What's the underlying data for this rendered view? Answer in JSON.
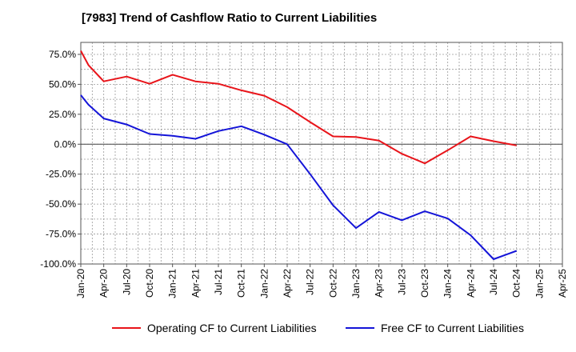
{
  "chart_data": {
    "type": "line",
    "title": "[7983]  Trend of Cashflow Ratio to Current Liabilities",
    "xlabel": "",
    "ylabel": "",
    "x_tick_labels": [
      "Jan-20",
      "Apr-20",
      "Jul-20",
      "Oct-20",
      "Jan-21",
      "Apr-21",
      "Jul-21",
      "Oct-21",
      "Jan-22",
      "Apr-22",
      "Jul-22",
      "Oct-22",
      "Jan-23",
      "Apr-23",
      "Jul-23",
      "Oct-23",
      "Jan-24",
      "Apr-24",
      "Jul-24",
      "Oct-24",
      "Jan-25",
      "Apr-25"
    ],
    "y_tick_values": [
      75,
      50,
      25,
      0,
      -25,
      -50,
      -75,
      -100
    ],
    "y_tick_labels": [
      "75.0%",
      "50.0%",
      "25.0%",
      "0.0%",
      "-25.0%",
      "-50.0%",
      "-75.0%",
      "-100.0%"
    ],
    "ylim": [
      -100,
      85
    ],
    "grid": true,
    "legend_position": "bottom",
    "series": [
      {
        "name": "Operating CF to Current Liabilities",
        "color": "#e8141a",
        "x": [
          "Jan-20",
          "Feb-20",
          "Apr-20",
          "Jul-20",
          "Oct-20",
          "Jan-21",
          "Apr-21",
          "Jul-21",
          "Oct-21",
          "Jan-22",
          "Apr-22",
          "Jul-22",
          "Oct-22",
          "Jan-23",
          "Apr-23",
          "Jul-23",
          "Oct-23",
          "Jan-24",
          "Apr-24",
          "Jul-24",
          "Oct-24"
        ],
        "values": [
          78,
          66,
          52.5,
          56.5,
          50.5,
          58,
          52.5,
          50.5,
          45,
          40.5,
          31,
          18.5,
          6.5,
          6.0,
          3.0,
          -8,
          -16,
          -5,
          6.5,
          2.5,
          -1
        ]
      },
      {
        "name": "Free CF to Current Liabilities",
        "color": "#1414d8",
        "x": [
          "Jan-20",
          "Feb-20",
          "Apr-20",
          "Jul-20",
          "Oct-20",
          "Jan-21",
          "Apr-21",
          "Jul-21",
          "Oct-21",
          "Jan-22",
          "Apr-22",
          "Jul-22",
          "Oct-22",
          "Jan-23",
          "Apr-23",
          "Jul-23",
          "Oct-23",
          "Jan-24",
          "Apr-24",
          "Jul-24",
          "Oct-24"
        ],
        "values": [
          41,
          33,
          21.5,
          16.5,
          8.5,
          7.0,
          4.5,
          11,
          15,
          8,
          0,
          -25,
          -51,
          -70,
          -56.5,
          -63.5,
          -56,
          -62,
          -76,
          -96,
          -89
        ]
      }
    ]
  }
}
